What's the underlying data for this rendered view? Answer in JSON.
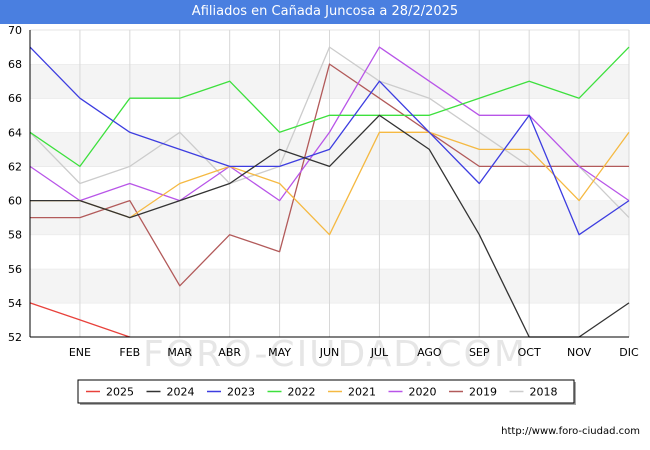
{
  "header": {
    "title": "Afiliados en Cañada Juncosa a 28/2/2025"
  },
  "watermark": "FORO-CIUDAD.COM",
  "footer": {
    "url": "http://www.foro-ciudad.com"
  },
  "chart_data": {
    "type": "line",
    "title": "Afiliados en Cañada Juncosa a 28/2/2025",
    "categories": [
      "",
      "ENE",
      "FEB",
      "MAR",
      "ABR",
      "MAY",
      "JUN",
      "JUL",
      "AGO",
      "SEP",
      "OCT",
      "NOV",
      "DIC"
    ],
    "ylim": [
      52,
      70
    ],
    "yticks": [
      52,
      54,
      56,
      58,
      60,
      62,
      64,
      66,
      68,
      70
    ],
    "grid": true,
    "legend_position": "bottom",
    "series": [
      {
        "name": "2025",
        "color": "#e8413b",
        "values": [
          54,
          53,
          52,
          null,
          null,
          null,
          null,
          null,
          null,
          null,
          null,
          null,
          null
        ]
      },
      {
        "name": "2024",
        "color": "#333333",
        "values": [
          60,
          60,
          59,
          60,
          61,
          63,
          62,
          65,
          63,
          58,
          52,
          52,
          54
        ]
      },
      {
        "name": "2023",
        "color": "#3d3de0",
        "values": [
          69,
          66,
          64,
          63,
          62,
          62,
          63,
          67,
          64,
          61,
          65,
          58,
          60
        ]
      },
      {
        "name": "2022",
        "color": "#3de03d",
        "values": [
          64,
          62,
          66,
          66,
          67,
          64,
          65,
          65,
          65,
          66,
          67,
          66,
          69
        ]
      },
      {
        "name": "2021",
        "color": "#f5b942",
        "values": [
          60,
          60,
          59,
          61,
          62,
          61,
          58,
          64,
          64,
          63,
          63,
          60,
          64
        ]
      },
      {
        "name": "2020",
        "color": "#b855e8",
        "values": [
          62,
          60,
          61,
          60,
          62,
          60,
          64,
          69,
          67,
          65,
          65,
          62,
          60
        ]
      },
      {
        "name": "2019",
        "color": "#b25a5a",
        "values": [
          59,
          59,
          60,
          55,
          58,
          57,
          68,
          66,
          64,
          62,
          62,
          62,
          62
        ]
      },
      {
        "name": "2018",
        "color": "#cccccc",
        "values": [
          64,
          61,
          62,
          64,
          61,
          62,
          69,
          67,
          66,
          64,
          62,
          62,
          59
        ]
      }
    ]
  }
}
